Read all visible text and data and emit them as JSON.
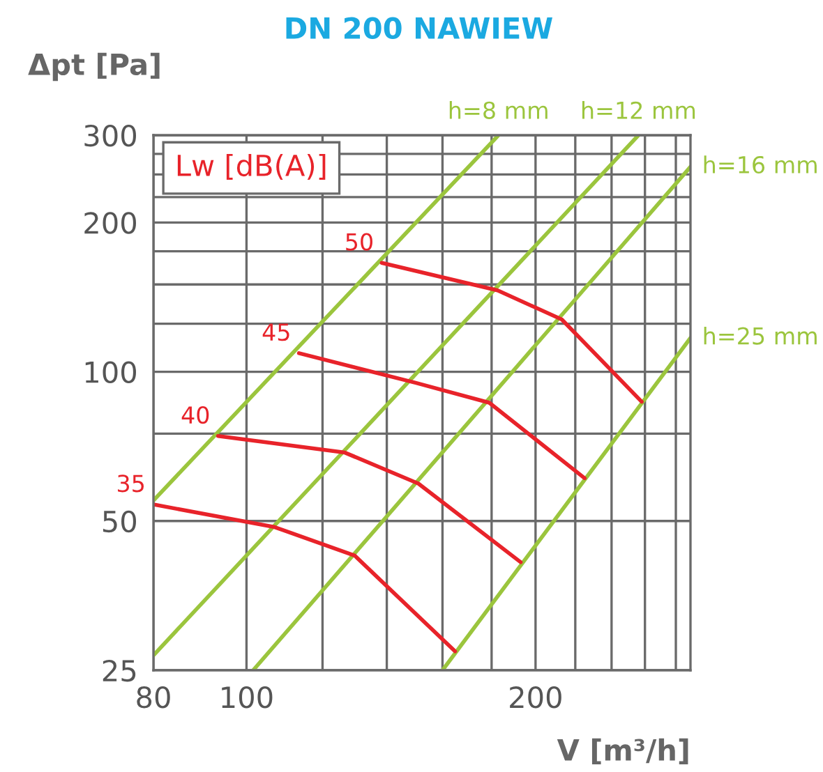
{
  "chart_data": {
    "type": "line",
    "title": "DN 200 NAWIEW",
    "xlabel": "V [m³/h]",
    "ylabel": "Δpt [Pa]",
    "log": "xy",
    "grid": true,
    "xlim": [
      80,
      290
    ],
    "ylim": [
      25,
      300
    ],
    "xticks": [
      80,
      100,
      {
        "value": 120,
        "label": null
      },
      {
        "value": 140,
        "label": null
      },
      {
        "value": 160,
        "label": null
      },
      {
        "value": 180,
        "label": null
      },
      200,
      {
        "value": 220,
        "label": null
      },
      {
        "value": 240,
        "label": null
      },
      {
        "value": 260,
        "label": null
      },
      {
        "value": 280,
        "label": null
      }
    ],
    "yticks": [
      25,
      50,
      {
        "value": 75,
        "label": null
      },
      100,
      {
        "value": 125,
        "label": null
      },
      {
        "value": 150,
        "label": null
      },
      {
        "value": 175,
        "label": null
      },
      200,
      {
        "value": 225,
        "label": null
      },
      {
        "value": 250,
        "label": null
      },
      {
        "value": 275,
        "label": null
      },
      300
    ],
    "annotations": [
      "Lw [dB(A)]"
    ],
    "series": [
      {
        "name": "h=8 mm",
        "color": "#9bc53d",
        "x": [
          80,
          183
        ],
        "values": [
          55,
          300
        ]
      },
      {
        "name": "h=12 mm",
        "color": "#9bc53d",
        "x": [
          80,
          256
        ],
        "values": [
          26.8,
          300
        ]
      },
      {
        "name": "h=16 mm",
        "color": "#9bc53d",
        "x": [
          101.6,
          290
        ],
        "values": [
          25,
          259
        ]
      },
      {
        "name": "h=25 mm",
        "color": "#9bc53d",
        "x": [
          160,
          290
        ],
        "values": [
          25,
          117
        ]
      },
      {
        "name": "35",
        "color": "#e8232a",
        "x": [
          80,
          107,
          129.6,
          164.9
        ],
        "values": [
          54,
          48.6,
          42.6,
          27.3
        ]
      },
      {
        "name": "40",
        "color": "#e8232a",
        "x": [
          93.4,
          126.6,
          151,
          193
        ],
        "values": [
          74.2,
          68.7,
          59.5,
          41.3
        ]
      },
      {
        "name": "45",
        "color": "#e8232a",
        "x": [
          113.4,
          150,
          179,
          225
        ],
        "values": [
          109,
          95,
          86.6,
          61
        ]
      },
      {
        "name": "50",
        "color": "#e8232a",
        "x": [
          138.3,
          182.6,
          213,
          258
        ],
        "values": [
          165.8,
          145.9,
          127.5,
          87
        ]
      }
    ]
  }
}
